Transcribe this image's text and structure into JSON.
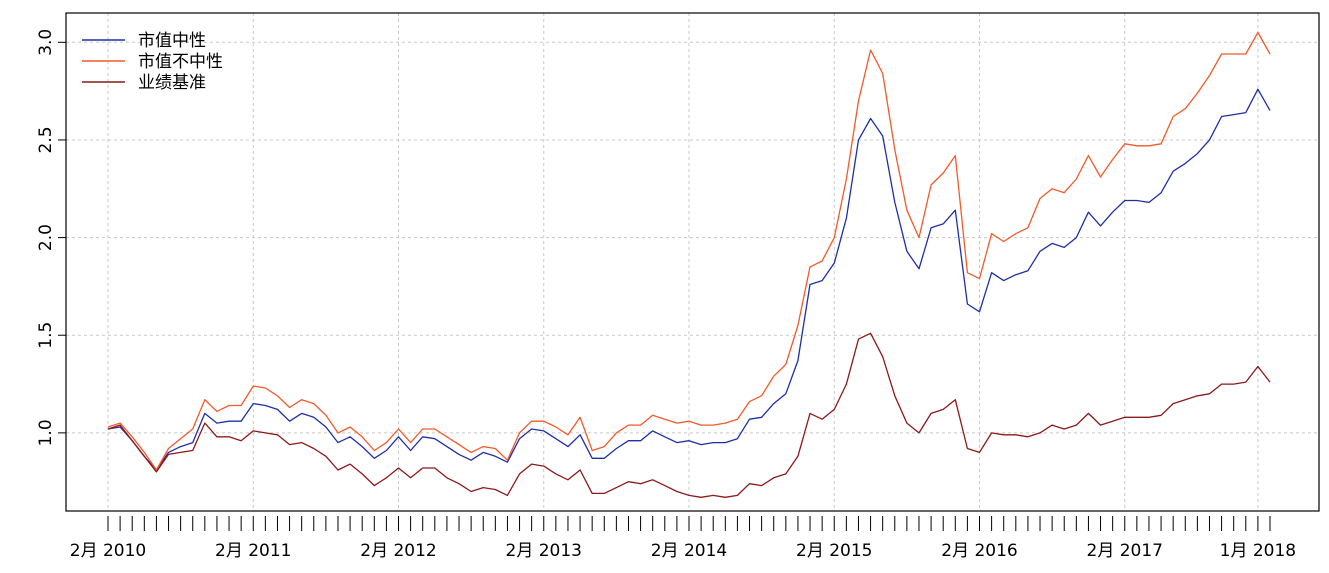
{
  "chart_data": {
    "type": "line",
    "title": "",
    "xlabel": "",
    "ylabel": "",
    "ylim": [
      0.6,
      3.15
    ],
    "yticks": [
      "1.0",
      "1.5",
      "2.0",
      "2.5",
      "3.0"
    ],
    "grid": true,
    "legend_position": "top-left",
    "x_tick_labels": [
      "2月 2010",
      "2月 2011",
      "2月 2012",
      "2月 2013",
      "2月 2014",
      "2月 2015",
      "2月 2016",
      "2月 2017",
      "1月 2018"
    ],
    "x_tick_month_index": [
      0,
      12,
      24,
      36,
      48,
      60,
      72,
      84,
      95
    ],
    "months_count": 97,
    "series": [
      {
        "name": "市值中性",
        "color": "#1f2fa8",
        "values": [
          1.02,
          1.03,
          0.96,
          0.88,
          0.81,
          0.9,
          0.93,
          0.95,
          1.1,
          1.05,
          1.06,
          1.06,
          1.15,
          1.14,
          1.12,
          1.06,
          1.1,
          1.08,
          1.03,
          0.95,
          0.98,
          0.93,
          0.87,
          0.91,
          0.98,
          0.91,
          0.98,
          0.97,
          0.93,
          0.89,
          0.86,
          0.9,
          0.88,
          0.85,
          0.97,
          1.02,
          1.01,
          0.97,
          0.93,
          0.99,
          0.87,
          0.87,
          0.92,
          0.96,
          0.96,
          1.01,
          0.98,
          0.95,
          0.96,
          0.94,
          0.95,
          0.95,
          0.97,
          1.07,
          1.08,
          1.15,
          1.2,
          1.37,
          1.76,
          1.78,
          1.87,
          2.1,
          2.5,
          2.61,
          2.52,
          2.18,
          1.93,
          1.84,
          2.05,
          2.07,
          2.14,
          1.66,
          1.62,
          1.82,
          1.78,
          1.81,
          1.83,
          1.93,
          1.97,
          1.95,
          2.0,
          2.13,
          2.06,
          2.13,
          2.19,
          2.19,
          2.18,
          2.23,
          2.34,
          2.38,
          2.43,
          2.5,
          2.62,
          2.63,
          2.64,
          2.76,
          2.65
        ]
      },
      {
        "name": "市值不中性",
        "color": "#f25a2a",
        "values": [
          1.03,
          1.05,
          0.98,
          0.9,
          0.81,
          0.92,
          0.97,
          1.02,
          1.17,
          1.11,
          1.14,
          1.14,
          1.24,
          1.23,
          1.19,
          1.13,
          1.17,
          1.15,
          1.09,
          1.0,
          1.03,
          0.98,
          0.91,
          0.95,
          1.02,
          0.95,
          1.02,
          1.02,
          0.98,
          0.94,
          0.9,
          0.93,
          0.92,
          0.86,
          1.0,
          1.06,
          1.06,
          1.03,
          0.99,
          1.08,
          0.91,
          0.93,
          1.0,
          1.04,
          1.04,
          1.09,
          1.07,
          1.05,
          1.06,
          1.04,
          1.04,
          1.05,
          1.07,
          1.16,
          1.19,
          1.29,
          1.35,
          1.55,
          1.85,
          1.88,
          2.0,
          2.3,
          2.7,
          2.96,
          2.84,
          2.45,
          2.14,
          2.0,
          2.27,
          2.33,
          2.42,
          1.82,
          1.79,
          2.02,
          1.98,
          2.02,
          2.05,
          2.2,
          2.25,
          2.23,
          2.3,
          2.42,
          2.31,
          2.4,
          2.48,
          2.47,
          2.47,
          2.48,
          2.62,
          2.66,
          2.74,
          2.83,
          2.94,
          2.94,
          2.94,
          3.05,
          2.94
        ]
      },
      {
        "name": "业绩基准",
        "color": "#8b1a1a",
        "values": [
          1.02,
          1.04,
          0.96,
          0.88,
          0.8,
          0.89,
          0.9,
          0.91,
          1.05,
          0.98,
          0.98,
          0.96,
          1.01,
          1.0,
          0.99,
          0.94,
          0.95,
          0.92,
          0.88,
          0.81,
          0.84,
          0.79,
          0.73,
          0.77,
          0.82,
          0.77,
          0.82,
          0.82,
          0.77,
          0.74,
          0.7,
          0.72,
          0.71,
          0.68,
          0.79,
          0.84,
          0.83,
          0.79,
          0.76,
          0.81,
          0.69,
          0.69,
          0.72,
          0.75,
          0.74,
          0.76,
          0.73,
          0.7,
          0.68,
          0.67,
          0.68,
          0.67,
          0.68,
          0.74,
          0.73,
          0.77,
          0.79,
          0.88,
          1.1,
          1.07,
          1.12,
          1.25,
          1.48,
          1.51,
          1.39,
          1.19,
          1.05,
          1.0,
          1.1,
          1.12,
          1.17,
          0.92,
          0.9,
          1.0,
          0.99,
          0.99,
          0.98,
          1.0,
          1.04,
          1.02,
          1.04,
          1.1,
          1.04,
          1.06,
          1.08,
          1.08,
          1.08,
          1.09,
          1.15,
          1.17,
          1.19,
          1.2,
          1.25,
          1.25,
          1.26,
          1.34,
          1.26
        ]
      }
    ]
  }
}
